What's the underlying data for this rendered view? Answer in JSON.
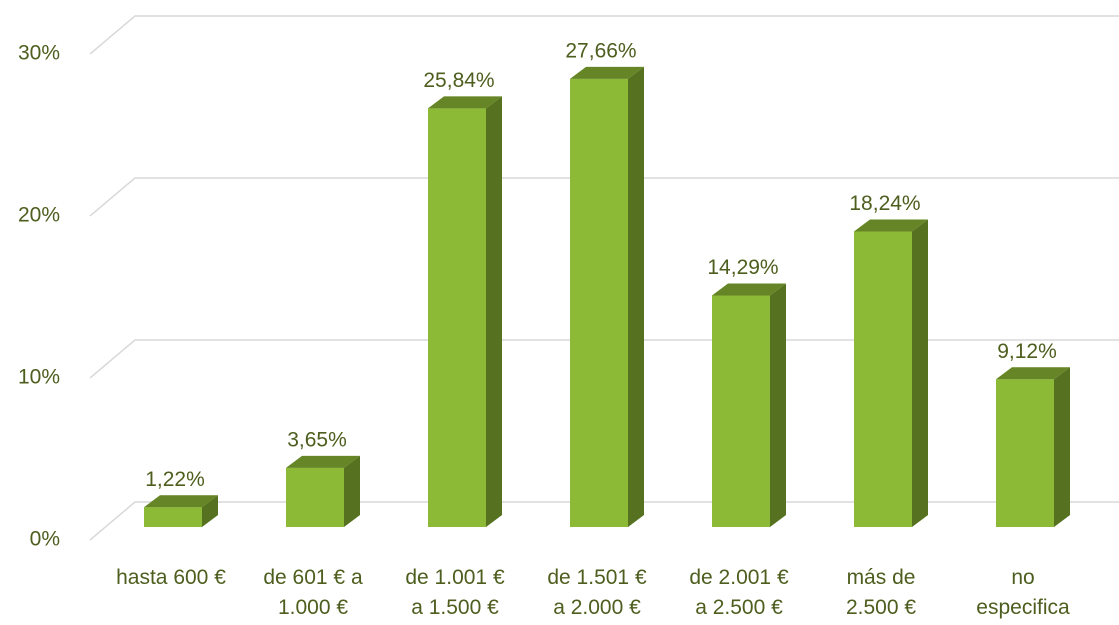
{
  "chart_data": {
    "type": "bar3d",
    "categories": [
      "hasta 600 €",
      "de 601 € a 1.000 €",
      "de 1.001 € a 1.500 €",
      "de 1.501 € a 2.000 €",
      "de 2.001 € a 2.500 €",
      "más de 2.500 €",
      "no especifica"
    ],
    "values": [
      1.22,
      3.65,
      25.84,
      27.66,
      14.29,
      18.24,
      9.12
    ],
    "value_labels": [
      "1,22%",
      "3,65%",
      "25,84%",
      "27,66%",
      "14,29%",
      "18,24%",
      "9,12%"
    ],
    "color": "#8cb936",
    "ylim": [
      0,
      30
    ],
    "yticks": [
      {
        "value": 0,
        "label": "0%"
      },
      {
        "value": 10,
        "label": "10%"
      },
      {
        "value": 20,
        "label": "20%"
      },
      {
        "value": 30,
        "label": "30%"
      }
    ],
    "grid": true
  }
}
